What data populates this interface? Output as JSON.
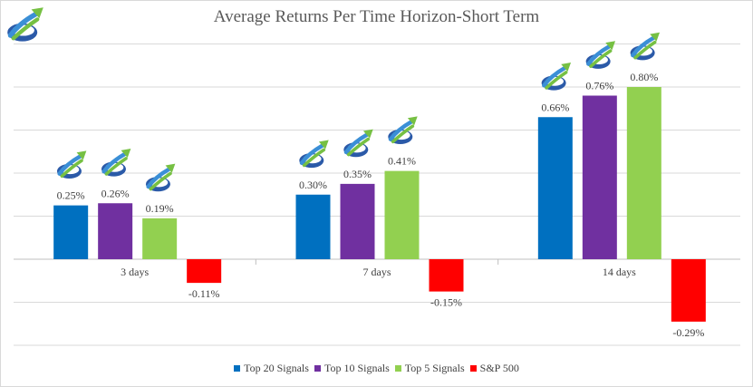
{
  "chart_data": {
    "type": "bar",
    "title": "Average Returns Per Time Horizon-Short Term",
    "xlabel": "",
    "ylabel": "",
    "categories": [
      "3 days",
      "7 days",
      "14 days"
    ],
    "series": [
      {
        "name": "Top 20 Signals",
        "color": "#0070c0",
        "values": [
          0.25,
          0.3,
          0.66
        ],
        "labels": [
          "0.25%",
          "0.30%",
          "0.66%"
        ]
      },
      {
        "name": "Top 10 Signals",
        "color": "#7030a0",
        "values": [
          0.26,
          0.35,
          0.76
        ],
        "labels": [
          "0.26%",
          "0.35%",
          "0.76%"
        ]
      },
      {
        "name": "Top 5 Signals",
        "color": "#92d050",
        "values": [
          0.19,
          0.41,
          0.8
        ],
        "labels": [
          "0.19%",
          "0.41%",
          "0.80%"
        ]
      },
      {
        "name": "S&P 500",
        "color": "#ff0000",
        "values": [
          -0.11,
          -0.15,
          -0.29
        ],
        "labels": [
          "-0.11%",
          "-0.15%",
          "-0.29%"
        ]
      }
    ],
    "ylim": [
      -0.4,
      1.0
    ],
    "grid": true,
    "legend": "bottom",
    "icon": "growth-arrow-logo-icon"
  }
}
